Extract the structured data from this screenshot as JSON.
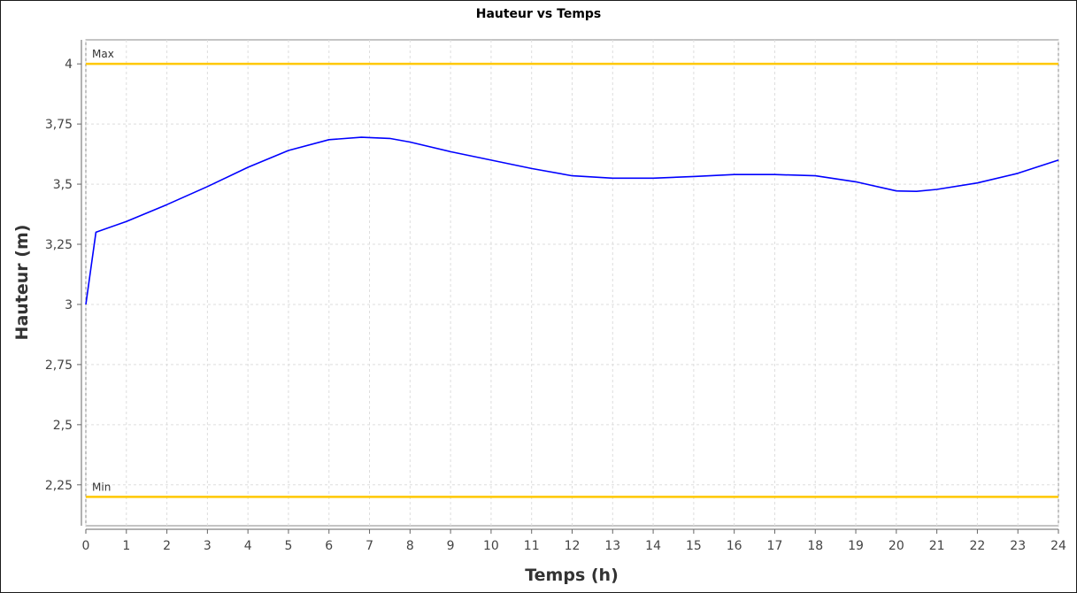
{
  "chart_data": {
    "type": "line",
    "title": "Hauteur vs Temps",
    "xlabel": "Temps (h)",
    "ylabel": "Hauteur (m)",
    "xlim": [
      0,
      24
    ],
    "ylim": [
      2.08,
      4.1
    ],
    "x_ticks": [
      0,
      1,
      2,
      3,
      4,
      5,
      6,
      7,
      8,
      9,
      10,
      11,
      12,
      13,
      14,
      15,
      16,
      17,
      18,
      19,
      20,
      21,
      22,
      23,
      24
    ],
    "y_ticks": [
      2.25,
      2.5,
      2.75,
      3,
      3.25,
      3.5,
      3.75,
      4
    ],
    "y_tick_labels": [
      "2,25",
      "2,5",
      "2,75",
      "3",
      "3,25",
      "3,5",
      "3,75",
      "4"
    ],
    "grid": true,
    "series": [
      {
        "color": "#0000ff",
        "x": [
          0,
          0.25,
          1,
          2,
          3,
          4,
          5,
          6,
          6.8,
          7.5,
          8,
          9,
          10,
          11,
          12,
          13,
          14,
          15,
          16,
          17,
          18,
          19,
          20,
          20.5,
          21,
          22,
          23,
          24
        ],
        "y": [
          3.0,
          3.3,
          3.345,
          3.415,
          3.49,
          3.57,
          3.64,
          3.685,
          3.695,
          3.69,
          3.675,
          3.635,
          3.6,
          3.565,
          3.535,
          3.525,
          3.525,
          3.532,
          3.54,
          3.54,
          3.535,
          3.51,
          3.472,
          3.47,
          3.478,
          3.505,
          3.545,
          3.6
        ]
      }
    ],
    "markers": [
      {
        "label": "Max",
        "value": 4.0,
        "color": "#ffc800"
      },
      {
        "label": "Min",
        "value": 2.2,
        "color": "#ffc800"
      }
    ]
  }
}
